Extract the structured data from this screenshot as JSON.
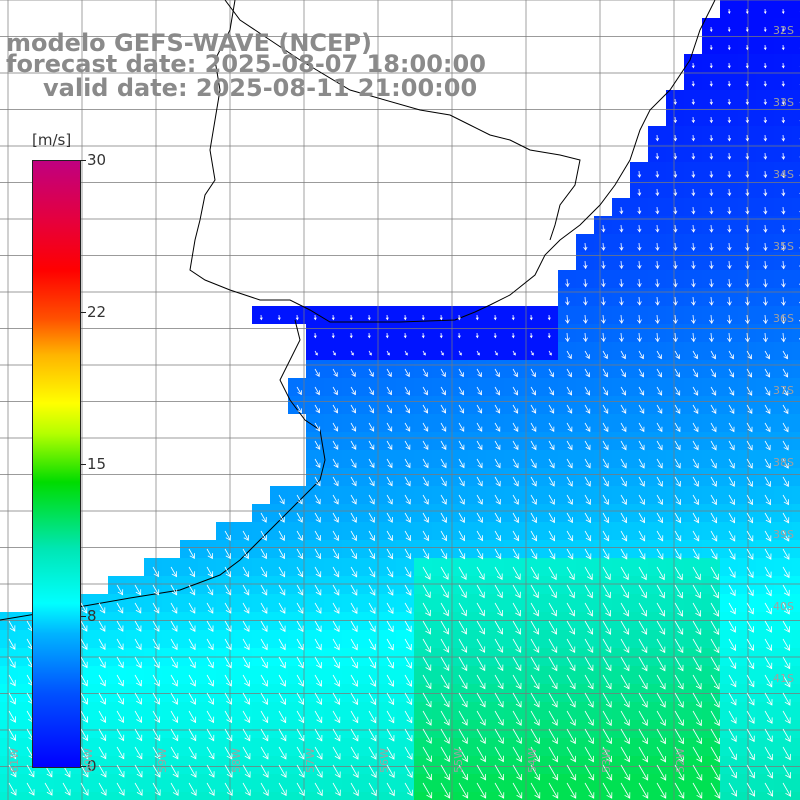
{
  "title": {
    "model": "modelo GEFS-WAVE (NCEP)",
    "forecast": "forecast date: 2025-08-07 18:00:00",
    "valid": "valid date: 2025-08-11 21:00:00"
  },
  "colorbar": {
    "unit": "[m/s]",
    "min": 0,
    "max": 30,
    "ticks": [
      "30",
      "22",
      "15",
      "8",
      "0"
    ],
    "tick_values": [
      30,
      22,
      15,
      8,
      0
    ],
    "colors": [
      "#0000ff",
      "#00b4ff",
      "#00ffff",
      "#00dc00",
      "#ffff00",
      "#ff5000",
      "#ff0000",
      "#c00080"
    ]
  },
  "map": {
    "variable": "wind speed",
    "grid_lines": true,
    "land_color": "#ffffff",
    "coast_color": "#000000",
    "arrow_color": "#ffffff",
    "lat_labels": [
      "32S",
      "33S",
      "34S",
      "35S",
      "36S",
      "37S",
      "38S",
      "39S",
      "40S",
      "41S"
    ],
    "lon_labels": [
      "61W",
      "60W",
      "59W",
      "58W",
      "57W",
      "56W",
      "55W",
      "54W",
      "53W",
      "52W"
    ]
  }
}
